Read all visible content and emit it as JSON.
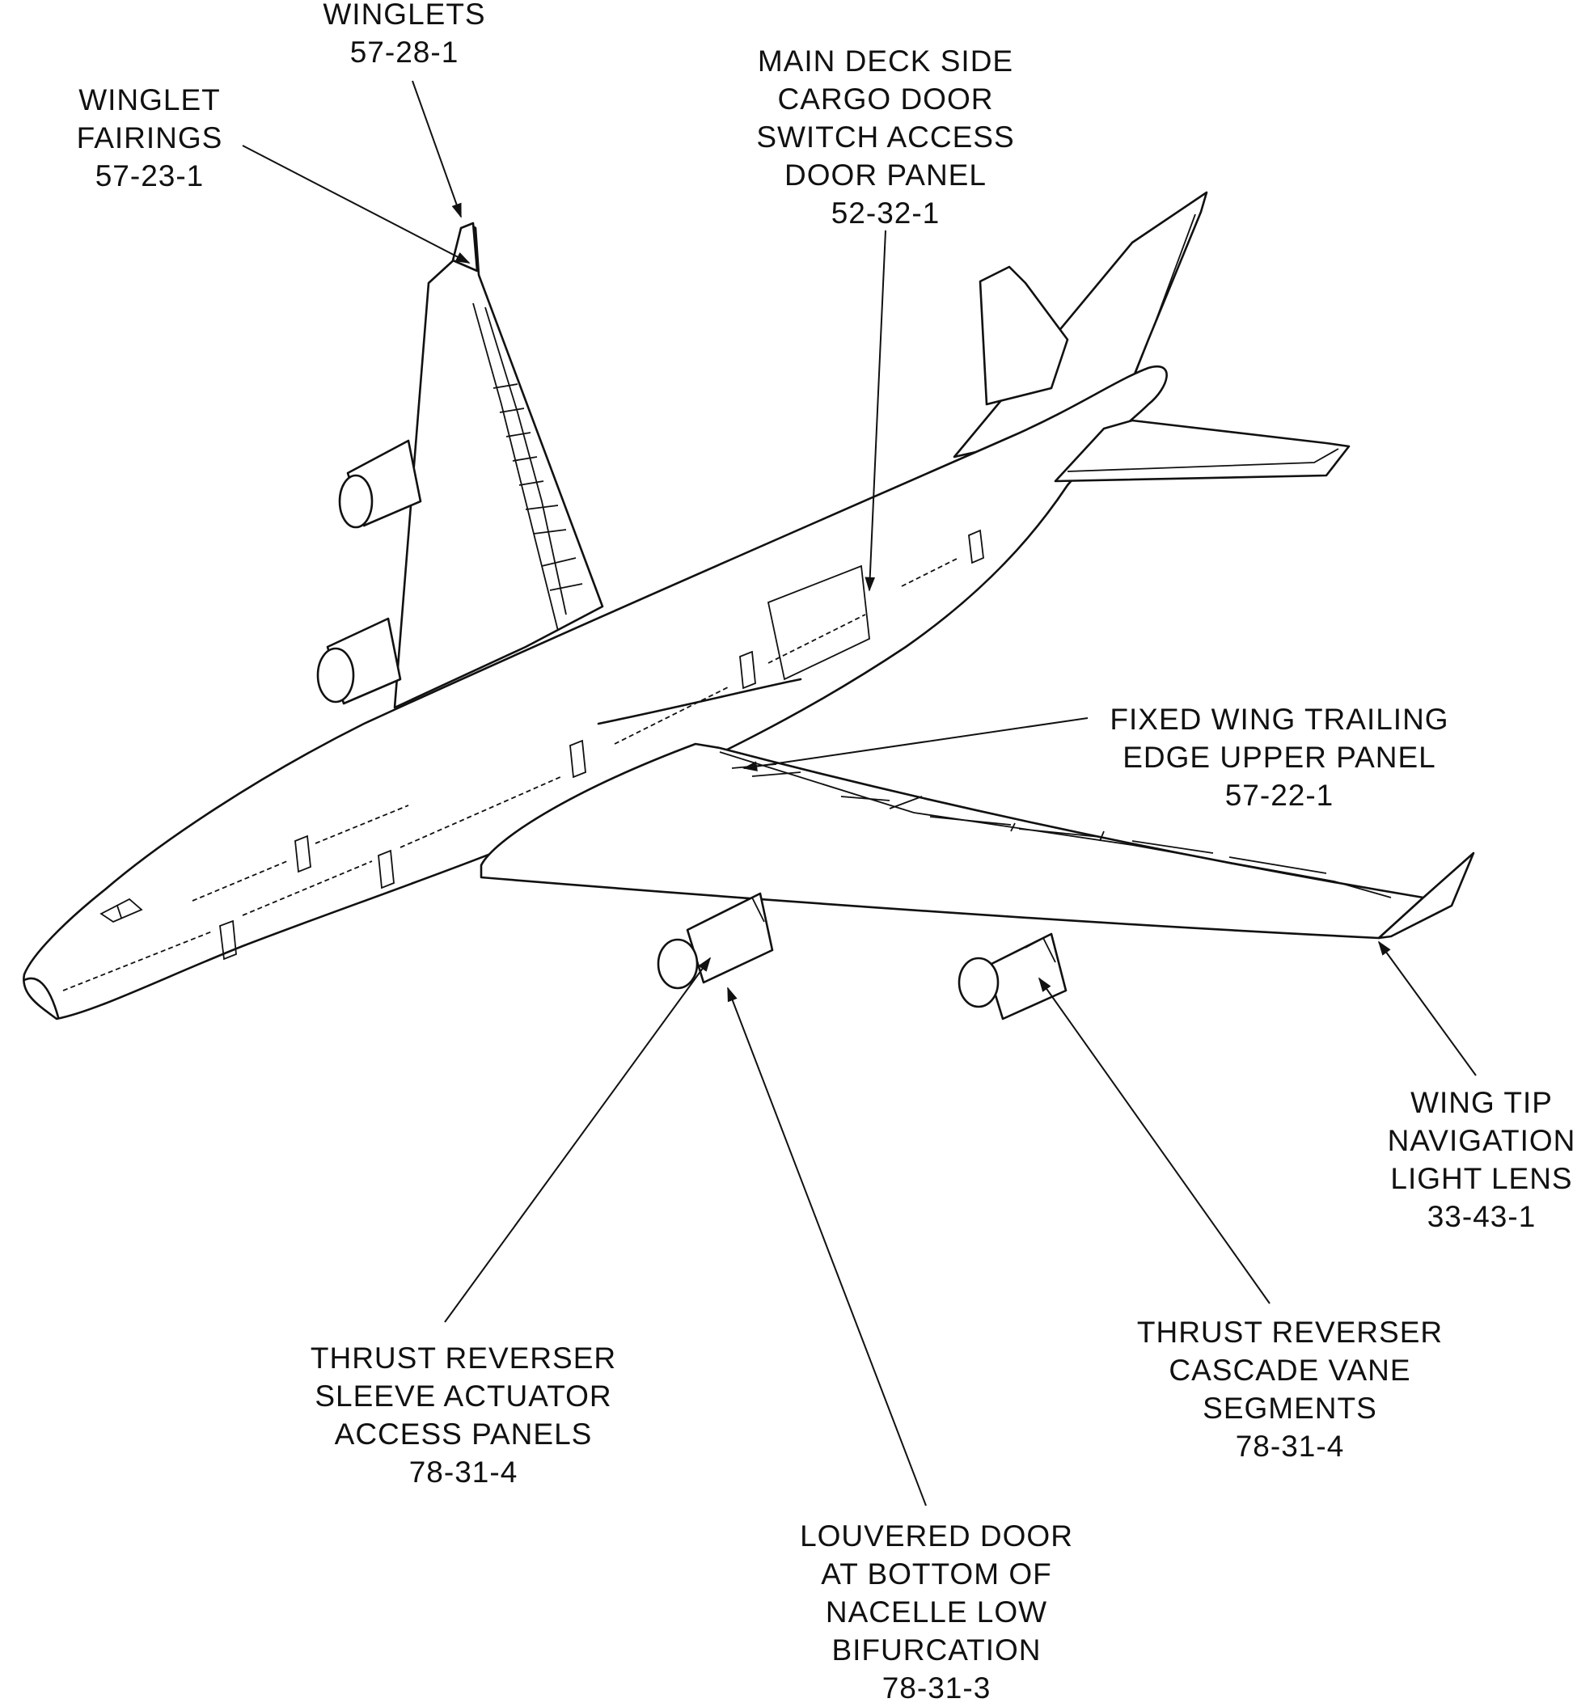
{
  "labels": {
    "winglets": [
      "WINGLETS",
      "57-28-1"
    ],
    "winglet_fairings": [
      "WINGLET",
      "FAIRINGS",
      "57-23-1"
    ],
    "cargo_door_panel": [
      "MAIN DECK SIDE",
      "CARGO DOOR",
      "SWITCH ACCESS",
      "DOOR PANEL",
      "52-32-1"
    ],
    "trailing_edge_panel": [
      "FIXED WING TRAILING",
      "EDGE UPPER PANEL",
      "57-22-1"
    ],
    "nav_light_lens": [
      "WING TIP",
      "NAVIGATION",
      "LIGHT LENS",
      "33-43-1"
    ],
    "cascade_vane": [
      "THRUST REVERSER",
      "CASCADE VANE",
      "SEGMENTS",
      "78-31-4"
    ],
    "sleeve_actuator": [
      "THRUST REVERSER",
      "SLEEVE ACTUATOR",
      "ACCESS PANELS",
      "78-31-4"
    ],
    "louvered_door": [
      "LOUVERED DOOR",
      "AT BOTTOM OF",
      "NACELLE LOW",
      "BIFURCATION",
      "78-31-3"
    ]
  }
}
